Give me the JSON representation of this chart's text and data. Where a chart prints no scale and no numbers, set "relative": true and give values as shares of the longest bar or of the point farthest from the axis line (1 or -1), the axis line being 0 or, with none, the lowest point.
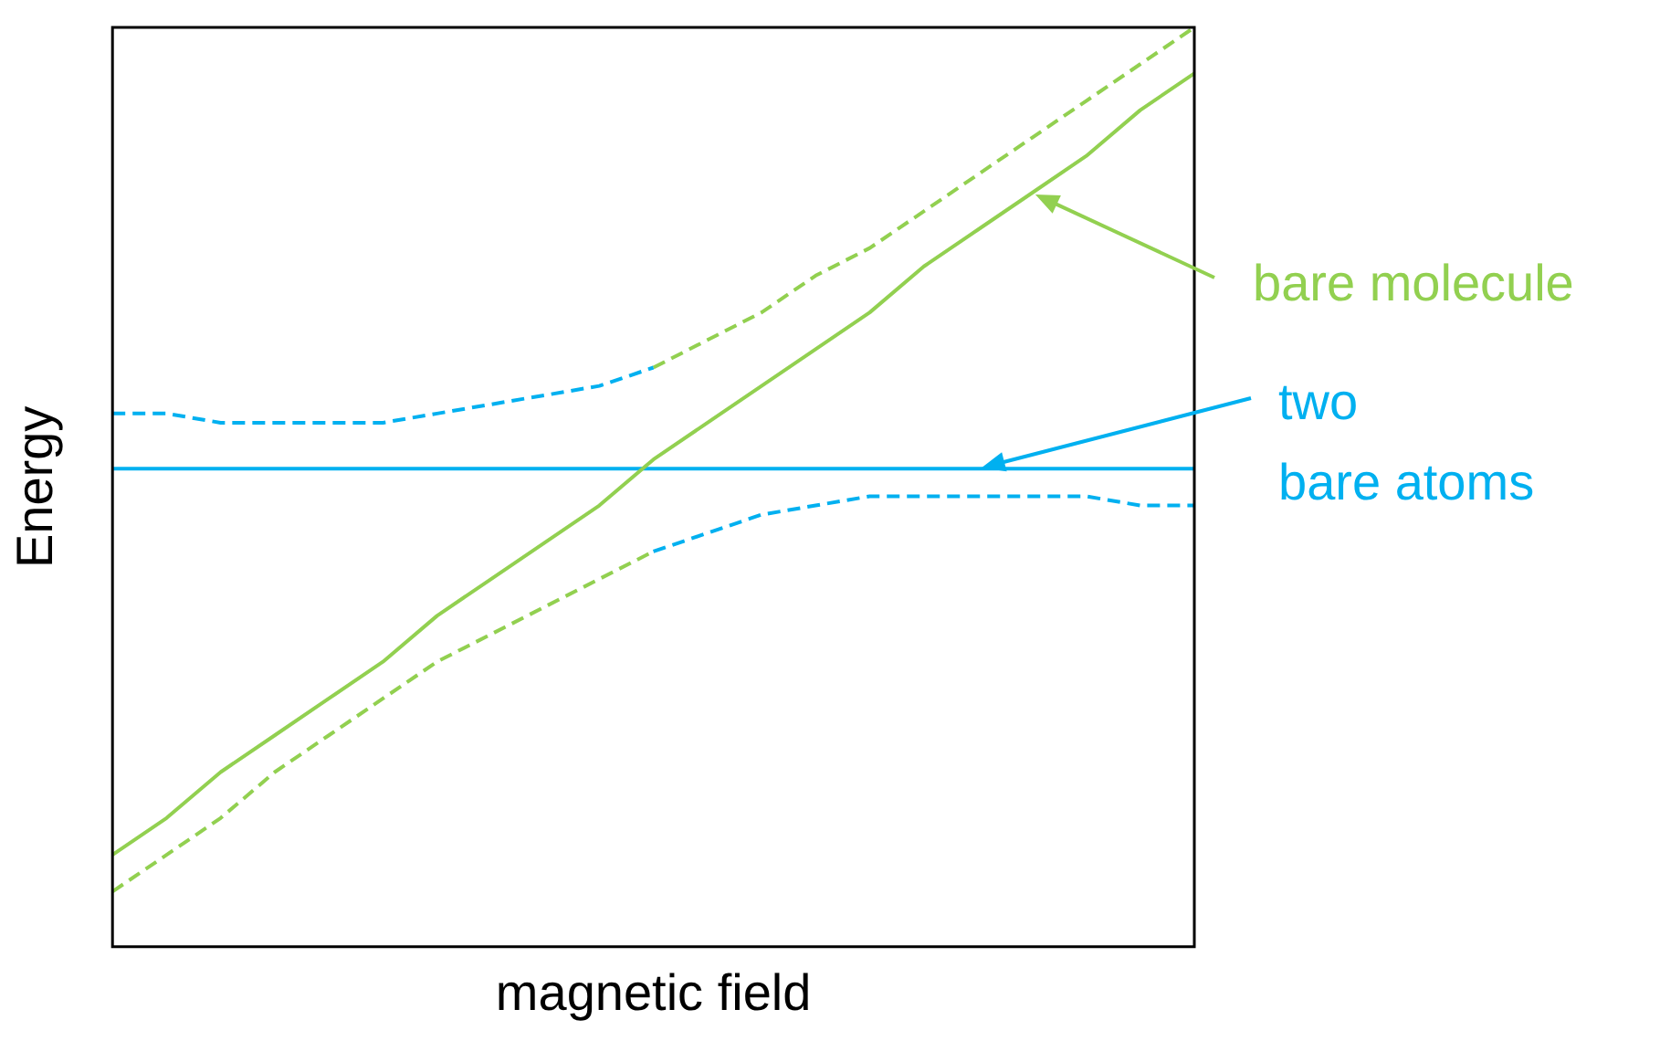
{
  "chart_data": {
    "type": "line",
    "relative": true,
    "xlabel": "magnetic field",
    "ylabel": "Energy",
    "legend": "right",
    "grid": false,
    "marker": "none",
    "categories": [
      null,
      null,
      null,
      null,
      null,
      null,
      null,
      null,
      null,
      null,
      null,
      null,
      null,
      null,
      null,
      null,
      null,
      null,
      null,
      null,
      null
    ],
    "series": [
      {
        "name": "bare molecule",
        "color": "#92d050",
        "line_style": "solid",
        "values": [
          0.1,
          0.14,
          0.19,
          0.23,
          0.27,
          0.31,
          0.36,
          0.4,
          0.44,
          0.48,
          0.53,
          0.57,
          0.61,
          0.65,
          0.69,
          0.74,
          0.78,
          0.82,
          0.86,
          0.91,
          0.95
        ]
      },
      {
        "name": "two\nbare atoms",
        "color": "#00b0f0",
        "line_style": "solid",
        "values": [
          0.52,
          0.52,
          0.52,
          0.52,
          0.52,
          0.52,
          0.52,
          0.52,
          0.52,
          0.52,
          0.52,
          0.52,
          0.52,
          0.52,
          0.52,
          0.52,
          0.52,
          0.52,
          0.52,
          0.52,
          0.52
        ]
      },
      {
        "color": "#00b0f0",
        "line_style": "dashed",
        "values": [
          0.58,
          0.58,
          0.57,
          0.57,
          0.57,
          0.57,
          0.58,
          0.59,
          0.6,
          0.61,
          0.63,
          null,
          null,
          null,
          null,
          null,
          null,
          null,
          null,
          null,
          null
        ]
      },
      {
        "color": "#92d050",
        "line_style": "dashed",
        "values": [
          null,
          null,
          null,
          null,
          null,
          null,
          null,
          null,
          null,
          null,
          0.63,
          0.66,
          0.69,
          0.73,
          0.76,
          0.8,
          0.84,
          0.88,
          0.92,
          0.96,
          1.0
        ]
      },
      {
        "color": "#92d050",
        "line_style": "dashed",
        "values": [
          0.06,
          0.1,
          0.14,
          0.19,
          0.23,
          0.27,
          0.31,
          0.34,
          0.37,
          0.4,
          0.43,
          null,
          null,
          null,
          null,
          null,
          null,
          null,
          null,
          null,
          null
        ]
      },
      {
        "color": "#00b0f0",
        "line_style": "dashed",
        "values": [
          null,
          null,
          null,
          null,
          null,
          null,
          null,
          null,
          null,
          null,
          0.43,
          0.45,
          0.47,
          0.48,
          0.49,
          0.49,
          0.49,
          0.49,
          0.49,
          0.48,
          0.48
        ]
      }
    ]
  }
}
